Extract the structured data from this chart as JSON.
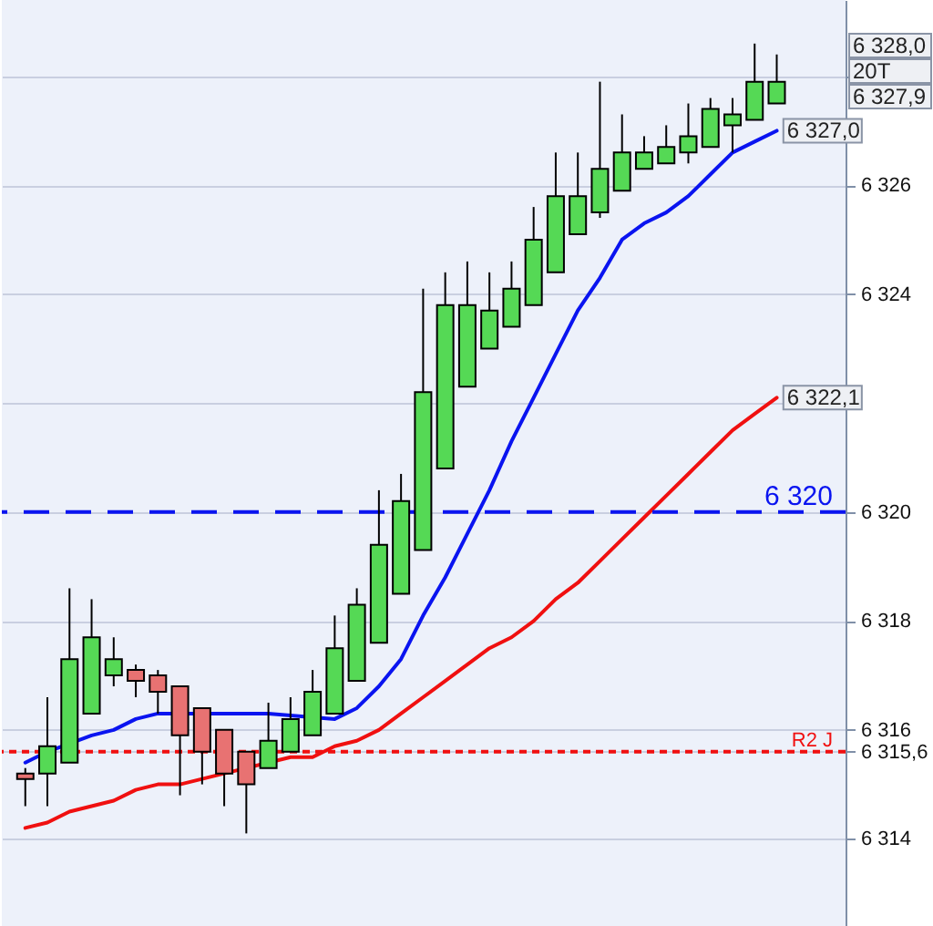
{
  "chart_data": {
    "type": "candlestick",
    "categories": [
      null,
      null,
      null,
      null,
      null,
      null,
      null,
      null,
      null,
      null,
      null,
      null,
      null,
      null,
      null,
      null,
      null,
      null,
      null,
      null,
      null,
      null,
      null,
      null,
      null,
      null,
      null,
      null,
      null,
      null,
      null,
      null,
      null,
      null,
      null
    ],
    "ohlc": [
      [
        6315.2,
        6315.3,
        6314.6,
        6315.1
      ],
      [
        6315.2,
        6316.6,
        6314.6,
        6315.7
      ],
      [
        6315.4,
        6318.6,
        6315.4,
        6317.3
      ],
      [
        6316.3,
        6318.4,
        6316.3,
        6317.7
      ],
      [
        6317.0,
        6317.7,
        6316.8,
        6317.3
      ],
      [
        6317.1,
        6317.2,
        6316.6,
        6316.9
      ],
      [
        6317.0,
        6317.1,
        6316.3,
        6316.7
      ],
      [
        6316.8,
        6316.8,
        6314.8,
        6315.9
      ],
      [
        6316.4,
        6316.4,
        6315.0,
        6315.6
      ],
      [
        6316.0,
        6316.0,
        6314.6,
        6315.2
      ],
      [
        6315.6,
        6315.6,
        6314.1,
        6315.0
      ],
      [
        6315.3,
        6316.5,
        6315.3,
        6315.8
      ],
      [
        6315.6,
        6316.6,
        6315.6,
        6316.2
      ],
      [
        6315.9,
        6317.1,
        6315.9,
        6316.7
      ],
      [
        6316.3,
        6318.1,
        6316.3,
        6317.5
      ],
      [
        6316.9,
        6318.6,
        6316.9,
        6318.3
      ],
      [
        6317.6,
        6320.4,
        6317.6,
        6319.4
      ],
      [
        6318.5,
        6320.7,
        6318.5,
        6320.2
      ],
      [
        6319.3,
        6324.1,
        6319.3,
        6322.2
      ],
      [
        6320.8,
        6324.4,
        6320.8,
        6323.8
      ],
      [
        6322.3,
        6324.6,
        6322.3,
        6323.8
      ],
      [
        6323.0,
        6324.4,
        6323.0,
        6323.7
      ],
      [
        6323.4,
        6324.6,
        6323.4,
        6324.1
      ],
      [
        6323.8,
        6325.6,
        6323.8,
        6325.0
      ],
      [
        6324.4,
        6326.6,
        6324.4,
        6325.8
      ],
      [
        6325.1,
        6326.6,
        6325.1,
        6325.8
      ],
      [
        6325.5,
        6327.9,
        6325.4,
        6326.3
      ],
      [
        6325.9,
        6327.3,
        6325.9,
        6326.6
      ],
      [
        6326.3,
        6326.9,
        6326.3,
        6326.6
      ],
      [
        6326.4,
        6327.1,
        6326.4,
        6326.7
      ],
      [
        6326.6,
        6327.5,
        6326.4,
        6326.9
      ],
      [
        6326.7,
        6327.6,
        6326.7,
        6327.4
      ],
      [
        6327.1,
        6327.6,
        6326.6,
        6327.3
      ],
      [
        6327.2,
        6328.6,
        6327.2,
        6327.9
      ],
      [
        6327.5,
        6328.4,
        6327.5,
        6327.9
      ]
    ],
    "colors": [
      "#e87272",
      "#55d955",
      "#55d955",
      "#55d955",
      "#55d955",
      "#e87272",
      "#e87272",
      "#e87272",
      "#e87272",
      "#e87272",
      "#e87272",
      "#55d955",
      "#55d955",
      "#55d955",
      "#55d955",
      "#55d955",
      "#55d955",
      "#55d955",
      "#55d955",
      "#55d955",
      "#55d955",
      "#55d955",
      "#55d955",
      "#55d955",
      "#55d955",
      "#55d955",
      "#55d955",
      "#55d955",
      "#55d955",
      "#55d955",
      "#55d955",
      "#55d955",
      "#55d955",
      "#55d955",
      "#55d955"
    ],
    "series": [
      {
        "type": "line",
        "color": "#0a14f0",
        "value_labels": [
          null,
          null,
          null,
          null,
          null,
          null,
          null,
          null,
          null,
          null,
          null,
          null,
          null,
          null,
          null,
          null,
          null,
          null,
          null,
          null,
          null,
          null,
          null,
          null,
          null,
          null,
          null,
          null,
          null,
          null,
          null,
          null,
          null,
          null,
          "6 327,0"
        ],
        "values": [
          6315.4,
          6315.6,
          null,
          6315.9,
          6316.0,
          6316.2,
          6316.3,
          6316.3,
          null,
          6316.3,
          6316.3,
          6316.3,
          null,
          null,
          6316.2,
          6316.4,
          6316.8,
          6317.3,
          6318.1,
          6318.8,
          6319.6,
          6320.4,
          6321.3,
          6322.1,
          6322.9,
          6323.7,
          6324.3,
          6325.0,
          6325.3,
          6325.5,
          6325.8,
          6326.2,
          6326.6,
          6326.8,
          6327.0
        ]
      },
      {
        "type": "line",
        "color": "#f01010",
        "value_labels": [
          null,
          null,
          null,
          null,
          null,
          null,
          null,
          null,
          null,
          null,
          null,
          null,
          null,
          null,
          null,
          null,
          null,
          null,
          null,
          null,
          null,
          null,
          null,
          null,
          null,
          null,
          null,
          null,
          null,
          null,
          null,
          null,
          null,
          null,
          "6 322,1"
        ],
        "values": [
          6314.2,
          6314.3,
          6314.5,
          6314.6,
          6314.7,
          6314.9,
          6315.0,
          6315.0,
          6315.1,
          6315.2,
          6315.3,
          6315.4,
          6315.5,
          6315.5,
          6315.7,
          6315.8,
          6316.0,
          6316.3,
          6316.6,
          6316.9,
          6317.2,
          6317.5,
          6317.7,
          6318.0,
          6318.4,
          6318.7,
          6319.1,
          6319.5,
          6319.9,
          6320.3,
          6320.7,
          6321.1,
          6321.5,
          6321.8,
          6322.1
        ]
      }
    ],
    "ylim": [
      6312.4,
      6329.4
    ],
    "yticks": [
      {
        "value": 6314,
        "label": "6 314"
      },
      {
        "value": 6315.6,
        "label": "6 315,6"
      },
      {
        "value": 6316,
        "label": "6 316"
      },
      {
        "value": 6318,
        "label": "6 318"
      },
      {
        "value": 6320,
        "label": "6 320"
      },
      {
        "value": 6322,
        "label": null
      },
      {
        "value": 6324,
        "label": "6 324"
      },
      {
        "value": 6326,
        "label": "6 326"
      },
      {
        "value": 6328,
        "label": null
      }
    ],
    "tick_labels": "y",
    "grid": "y",
    "ref_lines": [
      {
        "axis": "y",
        "value": 6320,
        "label": "6 320",
        "color": "#0a14f0",
        "line_style": "dashed"
      },
      {
        "axis": "y",
        "value": 6315.6,
        "label": "R2 J",
        "color": "#f01010",
        "line_style": "dotted"
      }
    ],
    "annotations": [
      "6 328,0",
      "20T",
      "6 327,9"
    ]
  }
}
